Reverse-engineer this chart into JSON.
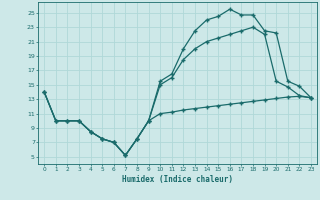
{
  "xlabel": "Humidex (Indice chaleur)",
  "background_color": "#cde8e8",
  "grid_color": "#b0d8d8",
  "line_color": "#1a6b6b",
  "xlim": [
    -0.5,
    23.5
  ],
  "ylim": [
    4,
    26.5
  ],
  "yticks": [
    5,
    7,
    9,
    11,
    13,
    15,
    17,
    19,
    21,
    23,
    25
  ],
  "xticks": [
    0,
    1,
    2,
    3,
    4,
    5,
    6,
    7,
    8,
    9,
    10,
    11,
    12,
    13,
    14,
    15,
    16,
    17,
    18,
    19,
    20,
    21,
    22,
    23
  ],
  "curve1_x": [
    0,
    1,
    2,
    3,
    4,
    5,
    6,
    7,
    8,
    9,
    10,
    11,
    12,
    13,
    14,
    15,
    16,
    17,
    18,
    19,
    20,
    21,
    22,
    23
  ],
  "curve1_y": [
    14,
    10,
    10,
    10,
    8.5,
    7.5,
    7.0,
    5.2,
    7.5,
    10.0,
    11.0,
    11.2,
    11.5,
    11.7,
    11.9,
    12.1,
    12.3,
    12.5,
    12.7,
    12.9,
    13.1,
    13.3,
    13.4,
    13.2
  ],
  "curve2_x": [
    0,
    1,
    2,
    3,
    4,
    5,
    6,
    7,
    8,
    9,
    10,
    11,
    12,
    13,
    14,
    15,
    16,
    17,
    18,
    19,
    20,
    21,
    22,
    23
  ],
  "curve2_y": [
    14,
    10,
    10,
    10,
    8.5,
    7.5,
    7.0,
    5.2,
    7.5,
    10.0,
    15.5,
    16.5,
    20.0,
    22.5,
    24.0,
    24.5,
    25.5,
    24.7,
    24.7,
    22.5,
    22.2,
    15.5,
    14.8,
    13.2
  ],
  "curve3_x": [
    0,
    1,
    2,
    3,
    4,
    5,
    6,
    7,
    8,
    9,
    10,
    11,
    12,
    13,
    14,
    15,
    16,
    17,
    18,
    19,
    20,
    21,
    22,
    23
  ],
  "curve3_y": [
    14,
    10,
    10,
    10,
    8.5,
    7.5,
    7.0,
    5.2,
    7.5,
    10.0,
    15.0,
    16.0,
    18.5,
    20.0,
    21.0,
    21.5,
    22.0,
    22.5,
    23.0,
    22.0,
    15.5,
    14.7,
    13.5,
    13.2
  ],
  "marker": "+",
  "markersize": 3,
  "linewidth": 0.9
}
